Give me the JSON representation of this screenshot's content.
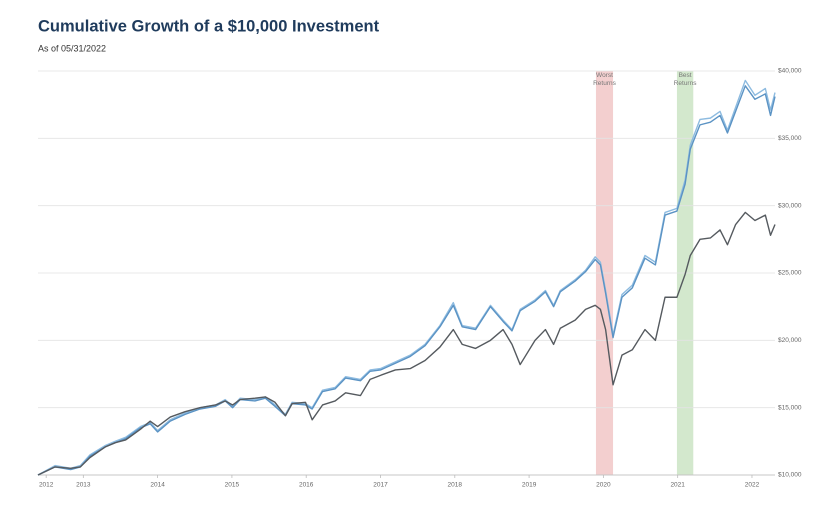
{
  "chart_data": {
    "type": "line",
    "title": "Cumulative Growth of a $10,000 Investment",
    "subtitle": "As of 05/31/2022",
    "x": [
      2012.39,
      2012.62,
      2012.83,
      2012.96,
      2013.09,
      2013.3,
      2013.43,
      2013.57,
      2013.77,
      2013.9,
      2014.0,
      2014.17,
      2014.37,
      2014.57,
      2014.78,
      2014.91,
      2015.01,
      2015.11,
      2015.31,
      2015.45,
      2015.58,
      2015.72,
      2015.81,
      2015.99,
      2016.08,
      2016.22,
      2016.39,
      2016.53,
      2016.73,
      2016.86,
      2017.0,
      2017.2,
      2017.4,
      2017.6,
      2017.8,
      2017.98,
      2018.1,
      2018.28,
      2018.48,
      2018.65,
      2018.77,
      2018.88,
      2019.08,
      2019.22,
      2019.33,
      2019.42,
      2019.62,
      2019.76,
      2019.89,
      2019.96,
      2020.03,
      2020.13,
      2020.25,
      2020.39,
      2020.56,
      2020.7,
      2020.83,
      2020.99,
      2021.1,
      2021.17,
      2021.3,
      2021.44,
      2021.57,
      2021.67,
      2021.78,
      2021.91,
      2022.04,
      2022.18,
      2022.25,
      2022.31
    ],
    "series": [
      {
        "color": "#8dbbe0",
        "values": [
          10000,
          10700,
          10500,
          10700,
          11500,
          12200,
          12500,
          12800,
          13600,
          13900,
          13300,
          14100,
          14600,
          15000,
          15200,
          15600,
          15100,
          15700,
          15600,
          15800,
          15200,
          14500,
          15400,
          15300,
          15000,
          16300,
          16500,
          17300,
          17100,
          17800,
          17900,
          18400,
          18900,
          19700,
          21100,
          22800,
          21100,
          20900,
          22600,
          21500,
          20800,
          22300,
          23000,
          23700,
          22600,
          23700,
          24500,
          25200,
          26200,
          25800,
          23700,
          20400,
          23400,
          24100,
          26300,
          25800,
          29500,
          29800,
          31900,
          34500,
          36400,
          36500,
          37000,
          35600,
          37300,
          39300,
          38200,
          38700,
          37100,
          38400
        ]
      },
      {
        "color": "#5b93c4",
        "values": [
          10000,
          10600,
          10400,
          10600,
          11400,
          12100,
          12400,
          12700,
          13500,
          13800,
          13200,
          14000,
          14500,
          14900,
          15100,
          15500,
          15000,
          15600,
          15500,
          15700,
          15100,
          14400,
          15300,
          15200,
          14900,
          16200,
          16400,
          17200,
          17000,
          17700,
          17800,
          18300,
          18800,
          19600,
          21000,
          22600,
          21000,
          20800,
          22500,
          21400,
          20700,
          22200,
          22900,
          23600,
          22500,
          23600,
          24400,
          25100,
          26000,
          25600,
          23500,
          20200,
          23200,
          23900,
          26100,
          25600,
          29300,
          29600,
          31600,
          34200,
          36000,
          36200,
          36700,
          35400,
          37000,
          38900,
          37900,
          38300,
          36700,
          38100
        ]
      },
      {
        "color": "#555a5f",
        "values": [
          10000,
          10600,
          10500,
          10600,
          11300,
          12100,
          12400,
          12600,
          13400,
          14000,
          13600,
          14300,
          14700,
          15000,
          15200,
          15500,
          15200,
          15600,
          15700,
          15800,
          15400,
          14400,
          15300,
          15400,
          14100,
          15200,
          15500,
          16100,
          15900,
          17100,
          17400,
          17800,
          17900,
          18500,
          19500,
          20800,
          19700,
          19400,
          20000,
          20800,
          19700,
          18200,
          20000,
          20800,
          19700,
          20900,
          21500,
          22300,
          22600,
          22300,
          20800,
          16700,
          18900,
          19300,
          20800,
          20000,
          23200,
          23200,
          24900,
          26300,
          27500,
          27600,
          28200,
          27100,
          28600,
          29500,
          28900,
          29300,
          27800,
          28600
        ]
      }
    ],
    "bands": [
      {
        "label": "Worst Returns",
        "x": [
          2019.9,
          2020.13
        ],
        "color": "#f3cfcf"
      },
      {
        "label": "Best Returns",
        "x": [
          2020.99,
          2021.21
        ],
        "color": "#d3e8cd"
      }
    ],
    "xlim": [
      2012.39,
      2022.31
    ],
    "xticks": [
      {
        "value": 2012.5,
        "label": "2012"
      },
      2013,
      2014,
      2015,
      2016,
      2017,
      2018,
      2019,
      2020,
      2021,
      2022
    ],
    "ylim": [
      10000,
      40000
    ],
    "yticks": [
      {
        "value": 10000,
        "label": "$10,000"
      },
      {
        "value": 15000,
        "label": "$15,000"
      },
      {
        "value": 20000,
        "label": "$20,000"
      },
      {
        "value": 25000,
        "label": "$25,000"
      },
      {
        "value": 30000,
        "label": "$30,000"
      },
      {
        "value": 35000,
        "label": "$35,000"
      },
      {
        "value": 40000,
        "label": "$40,000"
      }
    ],
    "grid": true
  }
}
